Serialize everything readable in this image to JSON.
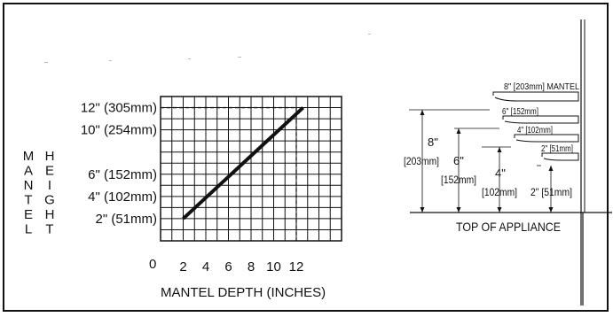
{
  "chart_data": {
    "type": "line",
    "xlabel": "MANTEL DEPTH (INCHES)",
    "ylabel_left": [
      "M",
      "A",
      "N",
      "T",
      "E",
      "L"
    ],
    "ylabel_right": [
      "H",
      "E",
      "I",
      "G",
      "H",
      "T"
    ],
    "origin_label": "0",
    "x_ticks": [
      "2",
      "4",
      "6",
      "8",
      "10",
      "12"
    ],
    "y_ticks": [
      "2\" (51mm)",
      "4\" (102mm)",
      "6\" (152mm)",
      "10\" (254mm)",
      "12\" (305mm)"
    ],
    "series": [
      {
        "x": [
          2,
          12.6
        ],
        "y": [
          2,
          12
        ]
      }
    ],
    "reference_lines": {
      "x": 12,
      "y": 12
    }
  },
  "diagram": {
    "top_label": "8\" [203mm] MANTEL",
    "mantels": [
      "6\" [152mm]",
      "4\" [102mm]",
      "2\" [51mm]"
    ],
    "dims": {
      "d8_a": "8\"",
      "d8_b": "[203mm]",
      "d6_a": "6\"",
      "d6_b": "[152mm]",
      "d4_a": "4\"",
      "d4_b": "[102mm]",
      "d2": "2\" [51mm]"
    },
    "base_label": "TOP OF APPLIANCE"
  }
}
